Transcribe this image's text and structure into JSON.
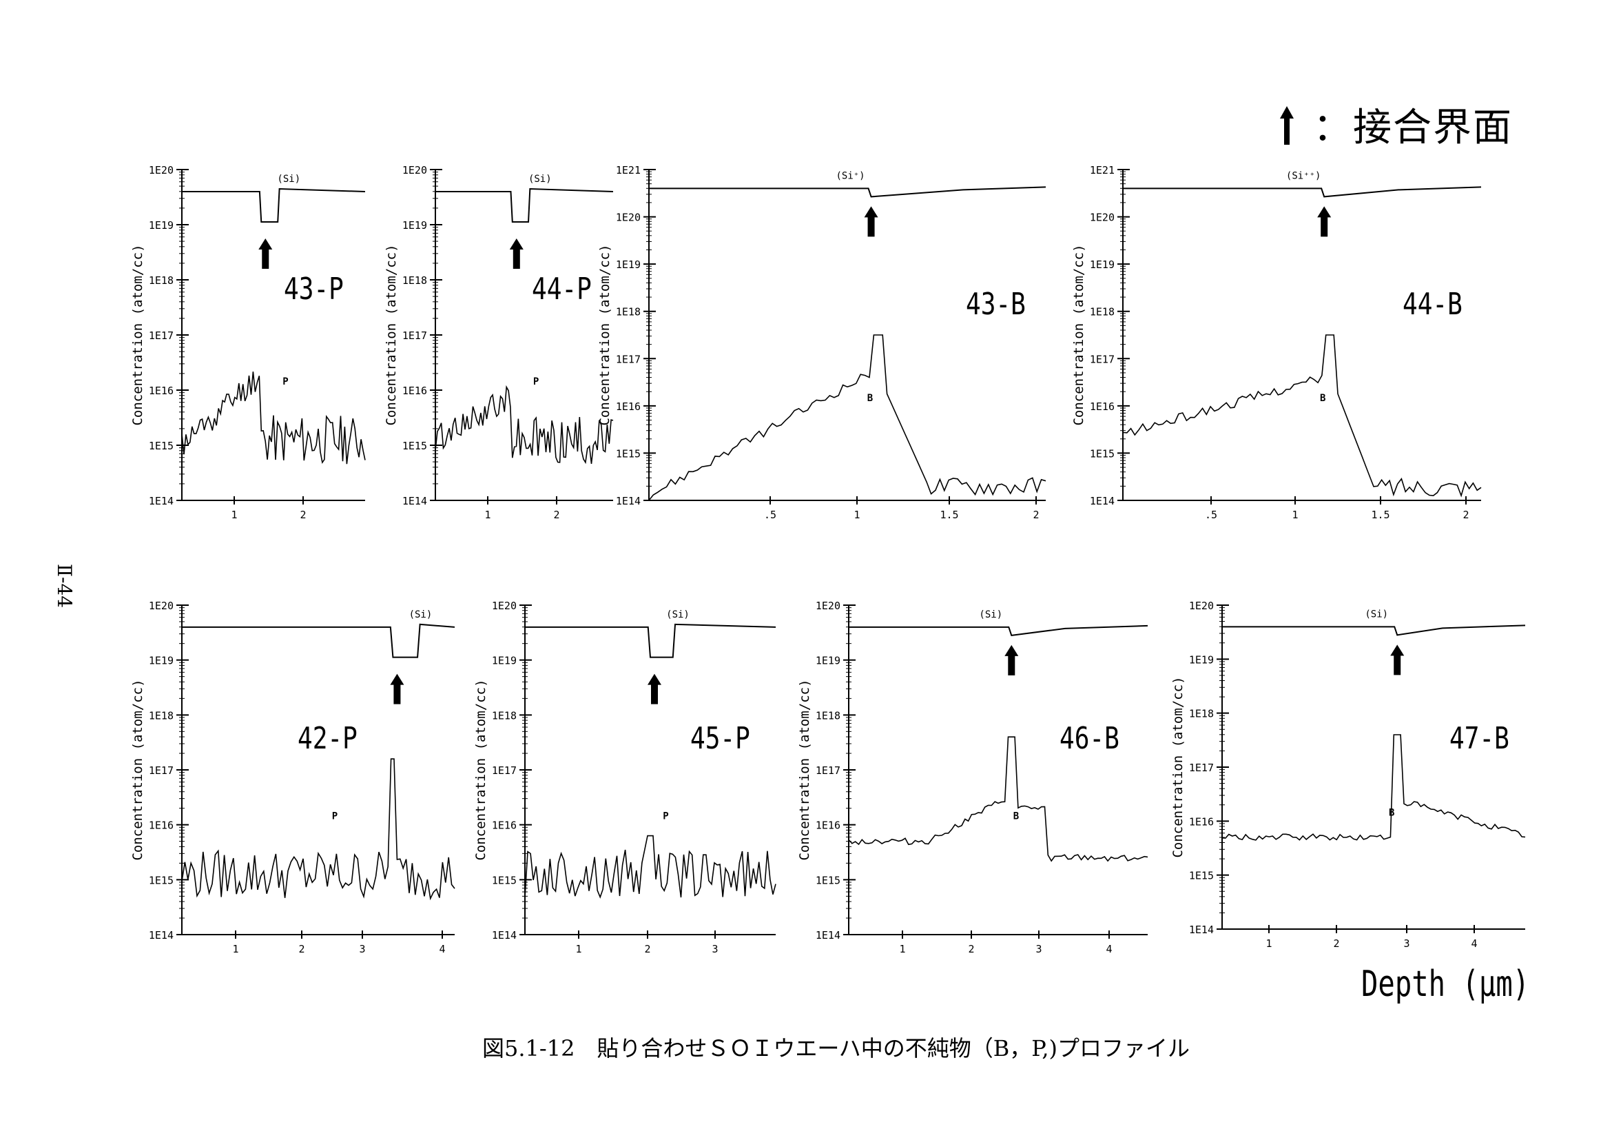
{
  "legend": {
    "arrow_icon": "up-arrow-icon",
    "text": "：接合界面"
  },
  "page_number": "Ⅱ-44",
  "xaxis_title": "Depth (μm)",
  "caption": "図5.1-12　貼り合わせＳＯＩウエーハ中の不純物（B，P,)プロファイル",
  "chart_data": [
    {
      "type": "line",
      "label": "43-P",
      "ylabel": "Concentration (atom/cc)",
      "yticks": [
        "1E14",
        "1E15",
        "1E16",
        "1E17",
        "1E18",
        "1E19",
        "1E20"
      ],
      "xticks": [
        "1",
        "2"
      ],
      "xlim": [
        0,
        2.7
      ],
      "si_label": "(Si)",
      "dopant_label": "P",
      "interface": 1.17,
      "series": []
    },
    {
      "type": "line",
      "label": "44-P",
      "ylabel": "Concentration (atom/cc)",
      "yticks": [
        "1E14",
        "1E15",
        "1E16",
        "1E17",
        "1E18",
        "1E19",
        "1E20"
      ],
      "xticks": [
        "1",
        "2"
      ],
      "xlim": [
        0,
        2.7
      ],
      "si_label": "(Si)",
      "dopant_label": "P",
      "interface": 1.17,
      "series": []
    },
    {
      "type": "line",
      "label": "43-B",
      "ylabel": "Concentration (atom/cc)",
      "yticks": [
        "1E14",
        "1E15",
        "1E16",
        "1E17",
        "1E18",
        "1E19",
        "1E20",
        "1E21"
      ],
      "xticks": [
        ".5",
        "1",
        "1.5",
        "2"
      ],
      "xlim": [
        0.1,
        2.1
      ],
      "si_label": "(Si⁺)",
      "dopant_label": "B",
      "interface": 1.22,
      "series": []
    },
    {
      "type": "line",
      "label": "44-B",
      "ylabel": "Concentration (atom/cc)",
      "yticks": [
        "1E14",
        "1E15",
        "1E16",
        "1E17",
        "1E18",
        "1E19",
        "1E20",
        "1E21"
      ],
      "xticks": [
        ".5",
        "1",
        "1.5",
        "2"
      ],
      "xlim": [
        0,
        2.1
      ],
      "si_label": "(Si⁺⁺)",
      "dopant_label": "B",
      "interface": 1.18,
      "series": []
    },
    {
      "type": "line",
      "label": "42-P",
      "ylabel": "Concentration (atom/cc)",
      "yticks": [
        "1E14",
        "1E15",
        "1E16",
        "1E17",
        "1E18",
        "1E19",
        "1E20"
      ],
      "xticks": [
        "1",
        "2",
        "3",
        "4"
      ],
      "xlim": [
        0,
        4.2
      ],
      "si_label": "(Si)",
      "dopant_label": "P",
      "interface": 3.25,
      "series": []
    },
    {
      "type": "line",
      "label": "45-P",
      "ylabel": "Concentration (atom/cc)",
      "yticks": [
        "1E14",
        "1E15",
        "1E16",
        "1E17",
        "1E18",
        "1E19",
        "1E20"
      ],
      "xticks": [
        "1",
        "2",
        "3"
      ],
      "xlim": [
        0,
        3.7
      ],
      "si_label": "(Si)",
      "dopant_label": "P",
      "interface": 1.85,
      "series": []
    },
    {
      "type": "line",
      "label": "46-B",
      "ylabel": "Concentration (atom/cc)",
      "yticks": [
        "1E14",
        "1E15",
        "1E16",
        "1E17",
        "1E18",
        "1E19",
        "1E20"
      ],
      "xticks": [
        "1",
        "2",
        "3",
        "4"
      ],
      "xlim": [
        0,
        4.5
      ],
      "si_label": "(Si)",
      "dopant_label": "B",
      "interface": 2.45,
      "series": []
    },
    {
      "type": "line",
      "label": "47-B",
      "ylabel": "Concentration (atom/cc)",
      "yticks": [
        "1E14",
        "1E15",
        "1E16",
        "1E17",
        "1E18",
        "1E19",
        "1E20"
      ],
      "xticks": [
        "1",
        "2",
        "3",
        "4"
      ],
      "xlim": [
        0,
        4.5
      ],
      "si_label": "(Si)",
      "dopant_label": "B",
      "interface": 2.6,
      "series": []
    }
  ]
}
